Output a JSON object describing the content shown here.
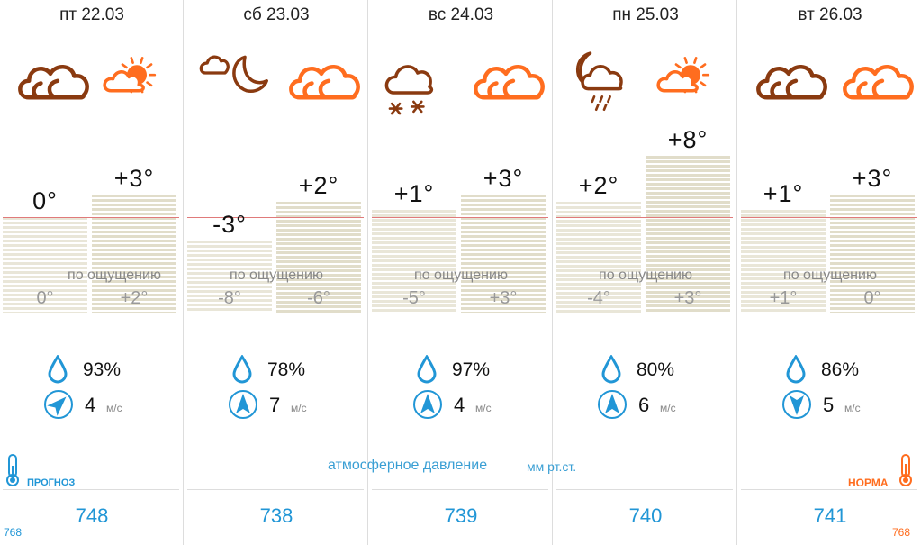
{
  "days": [
    {
      "date": "пт 22.03",
      "icon_night": "cloudy-icon",
      "icon_day": "sun-cloud-icon",
      "t1": "0°",
      "t2": "+3°",
      "t1v": 0,
      "t2v": 3,
      "f1": "0°",
      "f2": "+2°",
      "humidity": "93%",
      "wind": "4",
      "wind_dir": "wind-arrow-northeast-icon",
      "pressure": "748"
    },
    {
      "date": "сб 23.03",
      "icon_night": "moon-cloud-icon",
      "icon_day": "cloudy-icon",
      "t1": "-3°",
      "t2": "+2°",
      "t1v": -3,
      "t2v": 2,
      "f1": "-8°",
      "f2": "-6°",
      "humidity": "78%",
      "wind": "7",
      "wind_dir": "wind-arrow-north-icon",
      "pressure": "738"
    },
    {
      "date": "вс 24.03",
      "icon_night": "cloud-snow-icon",
      "icon_day": "cloudy-icon",
      "t1": "+1°",
      "t2": "+3°",
      "t1v": 1,
      "t2v": 3,
      "f1": "-5°",
      "f2": "+3°",
      "humidity": "97%",
      "wind": "4",
      "wind_dir": "wind-arrow-north-icon",
      "pressure": "739"
    },
    {
      "date": "пн 25.03",
      "icon_night": "moon-cloud-rain-icon",
      "icon_day": "sun-cloud-icon",
      "t1": "+2°",
      "t2": "+8°",
      "t1v": 2,
      "t2v": 8,
      "f1": "-4°",
      "f2": "+3°",
      "humidity": "80%",
      "wind": "6",
      "wind_dir": "wind-arrow-north-icon",
      "pressure": "740"
    },
    {
      "date": "вт 26.03",
      "icon_night": "cloudy-icon",
      "icon_day": "cloudy-icon",
      "t1": "+1°",
      "t2": "+3°",
      "t1v": 1,
      "t2v": 3,
      "f1": "+1°",
      "f2": "0°",
      "humidity": "86%",
      "wind": "5",
      "wind_dir": "wind-arrow-south-icon",
      "pressure": "741"
    }
  ],
  "labels": {
    "feels_like": "по ощущению",
    "wind_unit": "м/с",
    "pressure_title": "атмосферное давление",
    "pressure_unit": "мм рт.ст.",
    "forecast": "ПРОГНОЗ",
    "norm": "НОРМА",
    "scale_left": "768",
    "scale_right": "768"
  },
  "colors": {
    "night_icon": "#8a3a10",
    "day_icon": "#ff6d1f",
    "accent": "#2196d6",
    "norm_line": "#e07a7a"
  }
}
